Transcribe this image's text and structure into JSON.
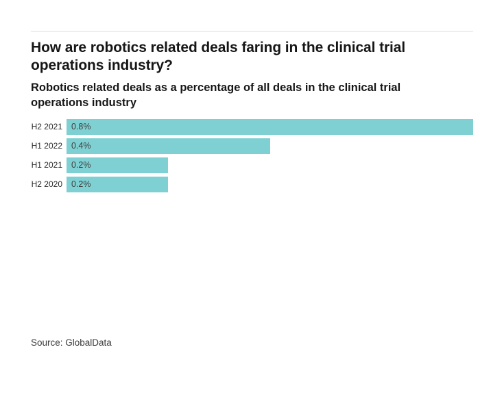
{
  "page": {
    "title": "How are robotics related deals faring in the clinical trial operations industry?",
    "subtitle": "Robotics related deals as a percentage of all deals in the clinical trial operations industry",
    "source": "Source: GlobalData"
  },
  "chart_data": {
    "type": "bar",
    "orientation": "horizontal",
    "title": "How are robotics related deals faring in the clinical trial operations industry?",
    "subtitle": "Robotics related deals as a percentage of all deals in the clinical trial operations industry",
    "categories": [
      "H2 2021",
      "H1 2022",
      "H1 2021",
      "H2 2020"
    ],
    "values": [
      0.8,
      0.4,
      0.2,
      0.2
    ],
    "value_labels": [
      "0.8%",
      "0.4%",
      "0.2%",
      "0.2%"
    ],
    "xlabel": "",
    "ylabel": "",
    "xlim": [
      0,
      0.8
    ],
    "grid": false,
    "legend": false,
    "bar_color": "#7fd0d2",
    "value_label_color": "#3d3d3d",
    "category_label_color": "#2b2b2b"
  }
}
